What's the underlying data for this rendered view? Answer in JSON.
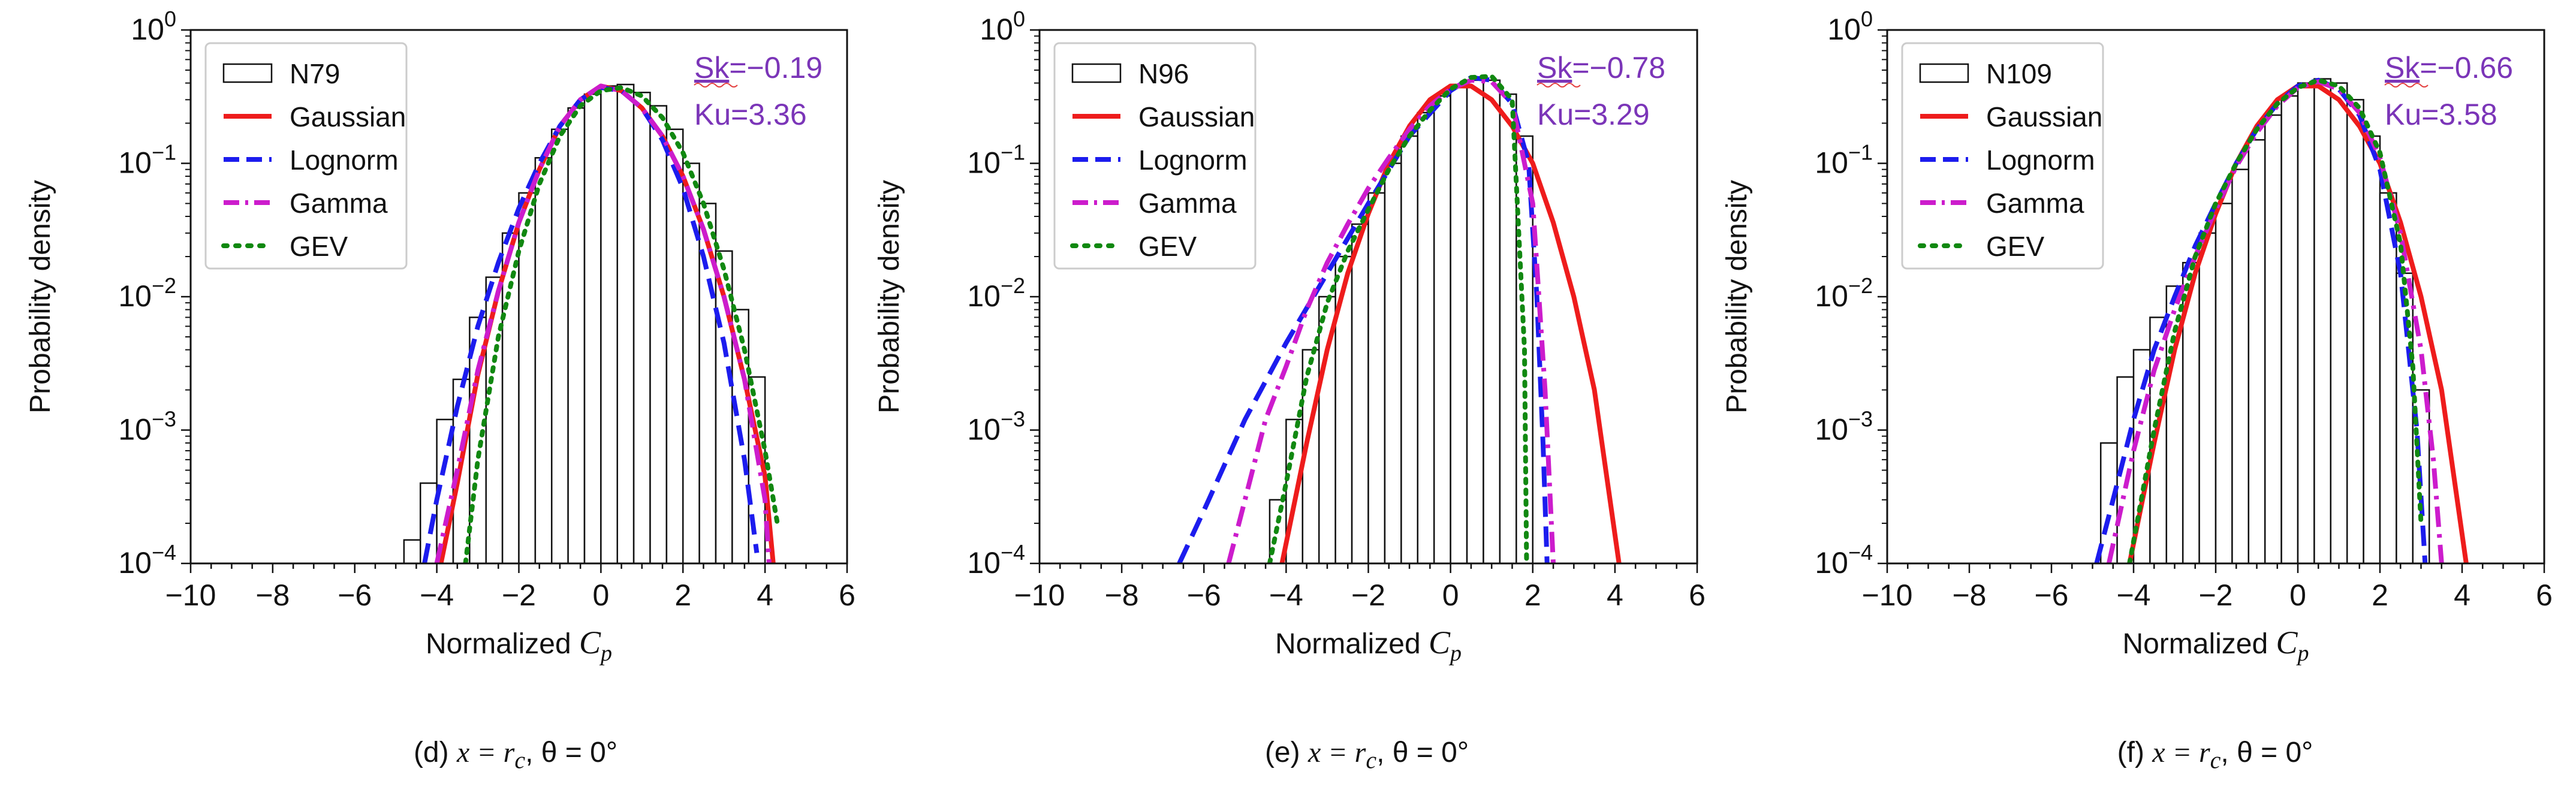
{
  "colors": {
    "gaussian": "#ee1c1c",
    "lognorm": "#1c1cee",
    "gamma": "#cc1ccc",
    "gev": "#118811",
    "annotation": "#7b35b8",
    "histogram_edge": "#111111"
  },
  "chart_data": [
    {
      "type": "histogram_with_fits",
      "panel": "d",
      "caption_prefix": "(d) ",
      "caption_math": "x = r",
      "caption_sub": "c",
      "caption_suffix": ", θ = 0°",
      "xlabel_text": "Normalized ",
      "xlabel_math": "C",
      "xlabel_sub": "p",
      "ylabel": "Probability density",
      "xlim": [
        -10,
        6
      ],
      "ylim": [
        0.0001,
        1
      ],
      "yscale": "log",
      "xticks": [
        -10,
        -8,
        -6,
        -4,
        -2,
        0,
        2,
        4,
        6
      ],
      "xtick_labels": [
        "−10",
        "−8",
        "−6",
        "−4",
        "−2",
        "0",
        "2",
        "4",
        "6"
      ],
      "yticks": [
        0.0001,
        0.001,
        0.01,
        0.1,
        1
      ],
      "ytick_exponents": [
        "−4",
        "−3",
        "−2",
        "−1",
        "0"
      ],
      "ytick_base": "10",
      "sk_label": "Sk",
      "sk_value": "=−0.19",
      "ku_label": "Ku=3.36",
      "legend": [
        "N79",
        "Gaussian",
        "Lognorm",
        "Gamma",
        "GEV"
      ],
      "histogram": {
        "bin_edges": [
          -4.8,
          -4.4,
          -4.0,
          -3.6,
          -3.2,
          -2.8,
          -2.4,
          -2.0,
          -1.6,
          -1.2,
          -0.8,
          -0.4,
          0.0,
          0.4,
          0.8,
          1.2,
          1.6,
          2.0,
          2.4,
          2.8,
          3.2,
          3.6,
          4.0
        ],
        "density": [
          0.00015,
          0.0004,
          0.0012,
          0.0024,
          0.007,
          0.014,
          0.03,
          0.06,
          0.11,
          0.18,
          0.26,
          0.33,
          0.38,
          0.39,
          0.34,
          0.27,
          0.18,
          0.1,
          0.05,
          0.022,
          0.008,
          0.0025
        ]
      },
      "series": [
        {
          "name": "Gaussian",
          "x": [
            -3.9,
            -3.5,
            -3,
            -2.5,
            -2,
            -1.5,
            -1,
            -0.5,
            0,
            0.5,
            1,
            1.5,
            2,
            2.5,
            3,
            3.5,
            4,
            4.2
          ],
          "y": [
            0.0001,
            0.0004,
            0.0026,
            0.011,
            0.036,
            0.09,
            0.19,
            0.3,
            0.38,
            0.35,
            0.26,
            0.16,
            0.08,
            0.032,
            0.01,
            0.0024,
            0.00045,
            0.0001
          ]
        },
        {
          "name": "Lognorm",
          "x": [
            -4.3,
            -4,
            -3.5,
            -3,
            -2.5,
            -2,
            -1.5,
            -1,
            -0.5,
            0,
            0.5,
            1,
            1.5,
            2,
            2.5,
            3,
            3.5,
            3.8
          ],
          "y": [
            0.0001,
            0.0003,
            0.0015,
            0.006,
            0.018,
            0.046,
            0.1,
            0.19,
            0.3,
            0.37,
            0.35,
            0.26,
            0.15,
            0.065,
            0.02,
            0.0045,
            0.0006,
            0.00012
          ]
        },
        {
          "name": "Gamma",
          "x": [
            -4,
            -3.5,
            -3,
            -2.5,
            -2,
            -1.5,
            -1,
            -0.5,
            0,
            0.5,
            1,
            1.5,
            2,
            2.5,
            3,
            3.5,
            4,
            4.1
          ],
          "y": [
            0.0001,
            0.0005,
            0.0028,
            0.011,
            0.036,
            0.09,
            0.19,
            0.3,
            0.38,
            0.35,
            0.26,
            0.16,
            0.08,
            0.032,
            0.01,
            0.0024,
            0.0003,
            0.0001
          ]
        },
        {
          "name": "GEV",
          "x": [
            -3.3,
            -3,
            -2.5,
            -2,
            -1.5,
            -1,
            -0.5,
            0,
            0.5,
            1,
            1.5,
            2,
            2.5,
            3,
            3.5,
            4,
            4.3
          ],
          "y": [
            0.0001,
            0.0006,
            0.005,
            0.022,
            0.07,
            0.16,
            0.27,
            0.35,
            0.37,
            0.32,
            0.22,
            0.12,
            0.05,
            0.016,
            0.004,
            0.0007,
            0.0002
          ]
        }
      ]
    },
    {
      "type": "histogram_with_fits",
      "panel": "e",
      "caption_prefix": "(e) ",
      "caption_math": "x = r",
      "caption_sub": "c",
      "caption_suffix": ", θ = 0°",
      "xlabel_text": "Normalized ",
      "xlabel_math": "C",
      "xlabel_sub": "p",
      "ylabel": "Probability density",
      "xlim": [
        -10,
        6
      ],
      "ylim": [
        0.0001,
        1
      ],
      "yscale": "log",
      "xticks": [
        -10,
        -8,
        -6,
        -4,
        -2,
        0,
        2,
        4,
        6
      ],
      "xtick_labels": [
        "−10",
        "−8",
        "−6",
        "−4",
        "−2",
        "0",
        "2",
        "4",
        "6"
      ],
      "yticks": [
        0.0001,
        0.001,
        0.01,
        0.1,
        1
      ],
      "ytick_exponents": [
        "−4",
        "−3",
        "−2",
        "−1",
        "0"
      ],
      "ytick_base": "10",
      "sk_label": "Sk",
      "sk_value": "=−0.78",
      "ku_label": "Ku=3.29",
      "legend": [
        "N96",
        "Gaussian",
        "Lognorm",
        "Gamma",
        "GEV"
      ],
      "histogram": {
        "bin_edges": [
          -4.4,
          -4.0,
          -3.6,
          -3.2,
          -2.8,
          -2.4,
          -2.0,
          -1.6,
          -1.2,
          -0.8,
          -0.4,
          0.0,
          0.4,
          0.8,
          1.2,
          1.6,
          2.0
        ],
        "density": [
          0.0003,
          0.0012,
          0.004,
          0.01,
          0.02,
          0.035,
          0.06,
          0.1,
          0.16,
          0.24,
          0.32,
          0.38,
          0.42,
          0.42,
          0.33,
          0.16
        ]
      },
      "series": [
        {
          "name": "Gaussian",
          "x": [
            -4.1,
            -3.5,
            -3,
            -2.5,
            -2,
            -1.5,
            -1,
            -0.5,
            0,
            0.5,
            1,
            1.5,
            2,
            2.5,
            3,
            3.5,
            4.1
          ],
          "y": [
            0.0001,
            0.0008,
            0.004,
            0.015,
            0.042,
            0.1,
            0.19,
            0.3,
            0.38,
            0.38,
            0.3,
            0.19,
            0.1,
            0.036,
            0.01,
            0.002,
            0.0001
          ]
        },
        {
          "name": "Lognorm",
          "x": [
            -6.6,
            -6,
            -5,
            -4,
            -3,
            -2,
            -1,
            0,
            0.5,
            1,
            1.5,
            1.9,
            2.1,
            2.25,
            2.35
          ],
          "y": [
            0.0001,
            0.00025,
            0.0012,
            0.0045,
            0.015,
            0.05,
            0.16,
            0.35,
            0.44,
            0.42,
            0.28,
            0.1,
            0.01,
            0.0008,
            0.0001
          ]
        },
        {
          "name": "Gamma",
          "x": [
            -5.4,
            -5,
            -4.5,
            -4,
            -3.5,
            -3,
            -2.5,
            -2,
            -1.5,
            -1,
            -0.5,
            0,
            0.5,
            1,
            1.5,
            2,
            2.3,
            2.5
          ],
          "y": [
            0.0001,
            0.0003,
            0.0012,
            0.003,
            0.008,
            0.018,
            0.035,
            0.065,
            0.11,
            0.18,
            0.27,
            0.36,
            0.42,
            0.41,
            0.28,
            0.05,
            0.002,
            0.0001
          ]
        },
        {
          "name": "GEV",
          "x": [
            -4.4,
            -4,
            -3.5,
            -3,
            -2.5,
            -2,
            -1.5,
            -1,
            -0.5,
            0,
            0.5,
            1,
            1.5,
            1.8,
            1.85
          ],
          "y": [
            0.0001,
            0.0004,
            0.0025,
            0.009,
            0.022,
            0.045,
            0.09,
            0.16,
            0.25,
            0.36,
            0.44,
            0.45,
            0.3,
            0.004,
            0.0001
          ]
        }
      ]
    },
    {
      "type": "histogram_with_fits",
      "panel": "f",
      "caption_prefix": "(f) ",
      "caption_math": "x = r",
      "caption_sub": "c",
      "caption_suffix": ", θ = 0°",
      "xlabel_text": "Normalized ",
      "xlabel_math": "C",
      "xlabel_sub": "p",
      "ylabel": "Probability density",
      "xlim": [
        -10,
        6
      ],
      "ylim": [
        0.0001,
        1
      ],
      "yscale": "log",
      "xticks": [
        -10,
        -8,
        -6,
        -4,
        -2,
        0,
        2,
        4,
        6
      ],
      "xtick_labels": [
        "−10",
        "−8",
        "−6",
        "−4",
        "−2",
        "0",
        "2",
        "4",
        "6"
      ],
      "yticks": [
        0.0001,
        0.001,
        0.01,
        0.1,
        1
      ],
      "ytick_exponents": [
        "−4",
        "−3",
        "−2",
        "−1",
        "0"
      ],
      "ytick_base": "10",
      "sk_label": "Sk",
      "sk_value": "=−0.66",
      "ku_label": "Ku=3.58",
      "legend": [
        "N109",
        "Gaussian",
        "Lognorm",
        "Gamma",
        "GEV"
      ],
      "histogram": {
        "bin_edges": [
          -4.8,
          -4.4,
          -4.0,
          -3.6,
          -3.2,
          -2.8,
          -2.4,
          -2.0,
          -1.6,
          -1.2,
          -0.8,
          -0.4,
          0.0,
          0.4,
          0.8,
          1.2,
          1.6,
          2.0,
          2.4,
          2.8,
          3.2
        ],
        "density": [
          0.0008,
          0.0025,
          0.004,
          0.007,
          0.012,
          0.018,
          0.03,
          0.05,
          0.09,
          0.15,
          0.23,
          0.32,
          0.4,
          0.43,
          0.4,
          0.3,
          0.16,
          0.06,
          0.015,
          0.002
        ]
      },
      "series": [
        {
          "name": "Gaussian",
          "x": [
            -4.1,
            -3.5,
            -3,
            -2.5,
            -2,
            -1.5,
            -1,
            -0.5,
            0,
            0.5,
            1,
            1.5,
            2,
            2.5,
            3,
            3.5,
            4.1
          ],
          "y": [
            0.0001,
            0.0008,
            0.004,
            0.015,
            0.042,
            0.1,
            0.19,
            0.3,
            0.38,
            0.38,
            0.3,
            0.19,
            0.1,
            0.036,
            0.01,
            0.002,
            0.0001
          ]
        },
        {
          "name": "Lognorm",
          "x": [
            -4.9,
            -4.5,
            -4,
            -3.5,
            -3,
            -2.5,
            -2,
            -1.5,
            -1,
            -0.5,
            0,
            0.5,
            1,
            1.5,
            2,
            2.5,
            2.9,
            3.1
          ],
          "y": [
            0.0001,
            0.0003,
            0.0012,
            0.004,
            0.01,
            0.024,
            0.05,
            0.1,
            0.18,
            0.28,
            0.38,
            0.42,
            0.36,
            0.23,
            0.09,
            0.015,
            0.001,
            0.0001
          ]
        },
        {
          "name": "Gamma",
          "x": [
            -4.6,
            -4,
            -3.5,
            -3,
            -2.5,
            -2,
            -1.5,
            -1,
            -0.5,
            0,
            0.5,
            1,
            1.5,
            2,
            2.5,
            3,
            3.3,
            3.5
          ],
          "y": [
            0.0001,
            0.0007,
            0.0028,
            0.008,
            0.02,
            0.045,
            0.095,
            0.17,
            0.27,
            0.37,
            0.41,
            0.36,
            0.24,
            0.11,
            0.03,
            0.004,
            0.0006,
            0.0001
          ]
        },
        {
          "name": "GEV",
          "x": [
            -4.1,
            -3.5,
            -3,
            -2.5,
            -2,
            -1.5,
            -1,
            -0.5,
            0,
            0.5,
            1,
            1.5,
            2,
            2.5,
            2.8,
            3.0
          ],
          "y": [
            0.0001,
            0.001,
            0.0055,
            0.02,
            0.05,
            0.1,
            0.18,
            0.28,
            0.37,
            0.42,
            0.38,
            0.26,
            0.12,
            0.025,
            0.003,
            0.0002
          ]
        }
      ]
    }
  ]
}
